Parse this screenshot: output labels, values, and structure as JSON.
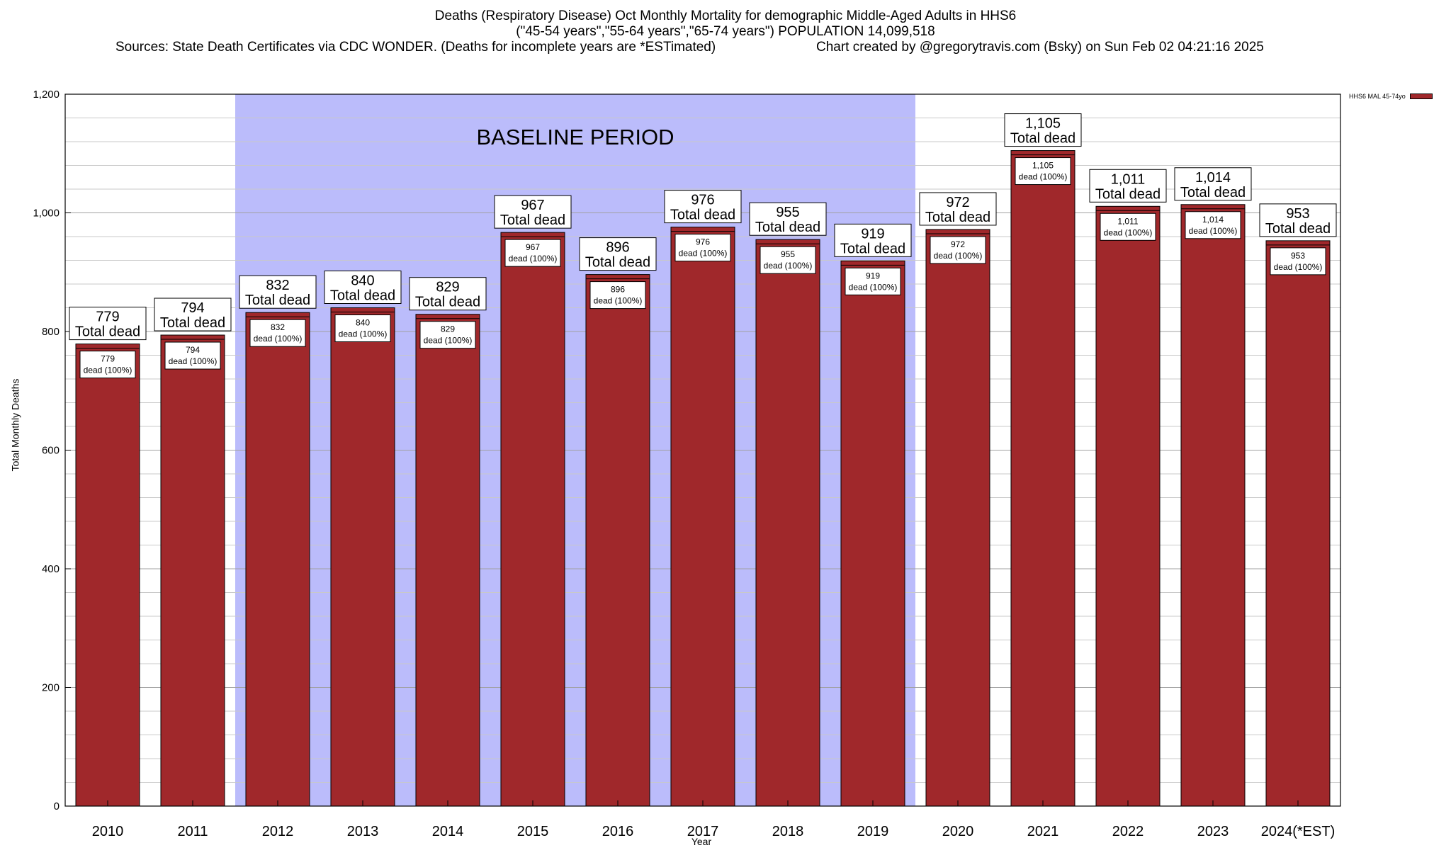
{
  "title": {
    "line1": "Deaths (Respiratory Disease) Oct Monthly Mortality for demographic Middle-Aged Adults in HHS6",
    "line2": "(\"45-54 years\",\"55-64 years\",\"65-74 years\") POPULATION 14,099,518",
    "sources": "Sources: State Death Certificates via CDC WONDER. (Deaths for incomplete years are *ESTimated)",
    "credit": "Chart created by @gregorytravis.com (Bsky) on Sun Feb 02 04:21:16 2025"
  },
  "chart_data": {
    "type": "bar",
    "title": "Deaths (Respiratory Disease) Oct Monthly Mortality for demographic Middle-Aged Adults in HHS6",
    "xlabel": "Year",
    "ylabel": "Total Monthly Deaths",
    "ylim": [
      0,
      1200
    ],
    "yticks": [
      0,
      200,
      400,
      600,
      800,
      1000,
      1200
    ],
    "ytick_labels": [
      "0",
      "200",
      "400",
      "600",
      "800",
      "1,000",
      "1,200"
    ],
    "grid": true,
    "legend_position": "top-right",
    "categories": [
      "2010",
      "2011",
      "2012",
      "2013",
      "2014",
      "2015",
      "2016",
      "2017",
      "2018",
      "2019",
      "2020",
      "2021",
      "2022",
      "2023",
      "2024(*EST)"
    ],
    "series": [
      {
        "name": "HHS6 MAL 45-74yo",
        "color": "#a0282b",
        "values": [
          779,
          794,
          832,
          840,
          829,
          967,
          896,
          976,
          955,
          919,
          972,
          1105,
          1011,
          1014,
          953
        ]
      }
    ],
    "value_labels": [
      "779",
      "794",
      "832",
      "840",
      "829",
      "967",
      "896",
      "976",
      "955",
      "919",
      "972",
      "1,105",
      "1,011",
      "1,014",
      "953"
    ],
    "top_label_suffix": "Total dead",
    "inner_label_suffix": "dead (100%)",
    "baseline": {
      "label": "BASELINE PERIOD",
      "from": "2012",
      "to": "2019",
      "color": "#bbbcfb"
    }
  }
}
